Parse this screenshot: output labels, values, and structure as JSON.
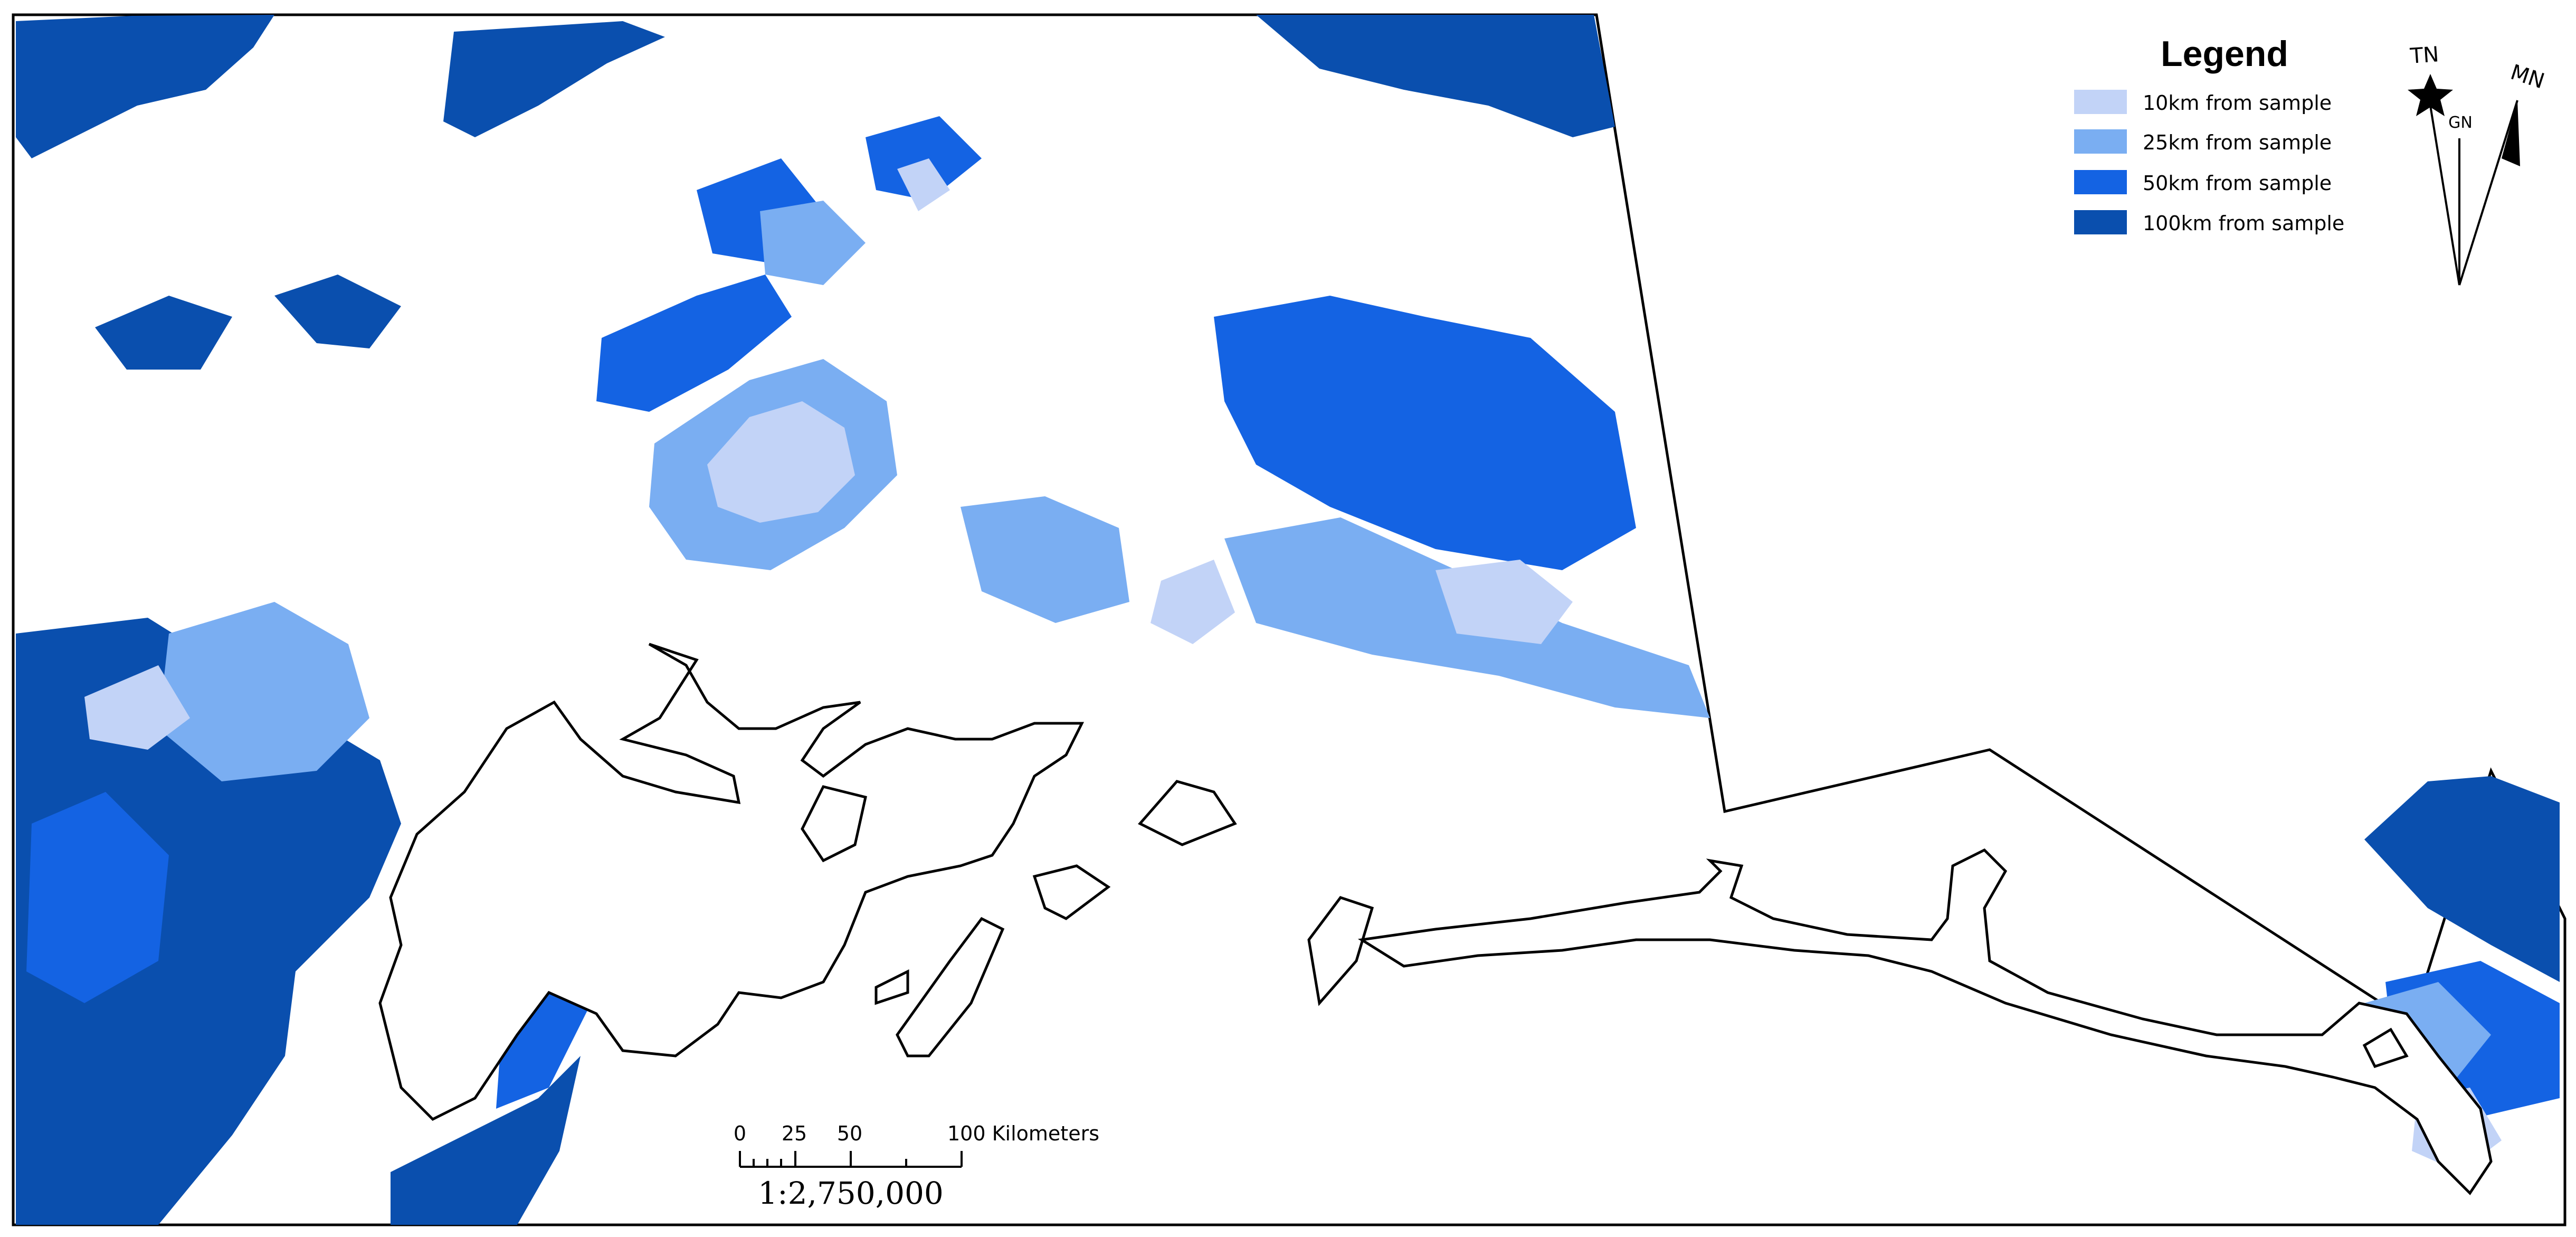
{
  "legend": {
    "title": "Legend",
    "items": [
      {
        "label": "10km from sample",
        "color": "#c2d3f7"
      },
      {
        "label": "25km from sample",
        "color": "#7aaef2"
      },
      {
        "label": "50km from sample",
        "color": "#1463e3"
      },
      {
        "label": "100km from sample",
        "color": "#0a4fae"
      }
    ]
  },
  "north_arrow": {
    "true_north": "TN",
    "grid_north": "GN",
    "magnetic_north": "MN"
  },
  "scale_bar": {
    "ticks": [
      "0",
      "25",
      "50",
      "100 Kilometers"
    ],
    "ratio": "1:2,750,000"
  },
  "colors": {
    "outline": "#000000",
    "background": "#ffffff"
  }
}
